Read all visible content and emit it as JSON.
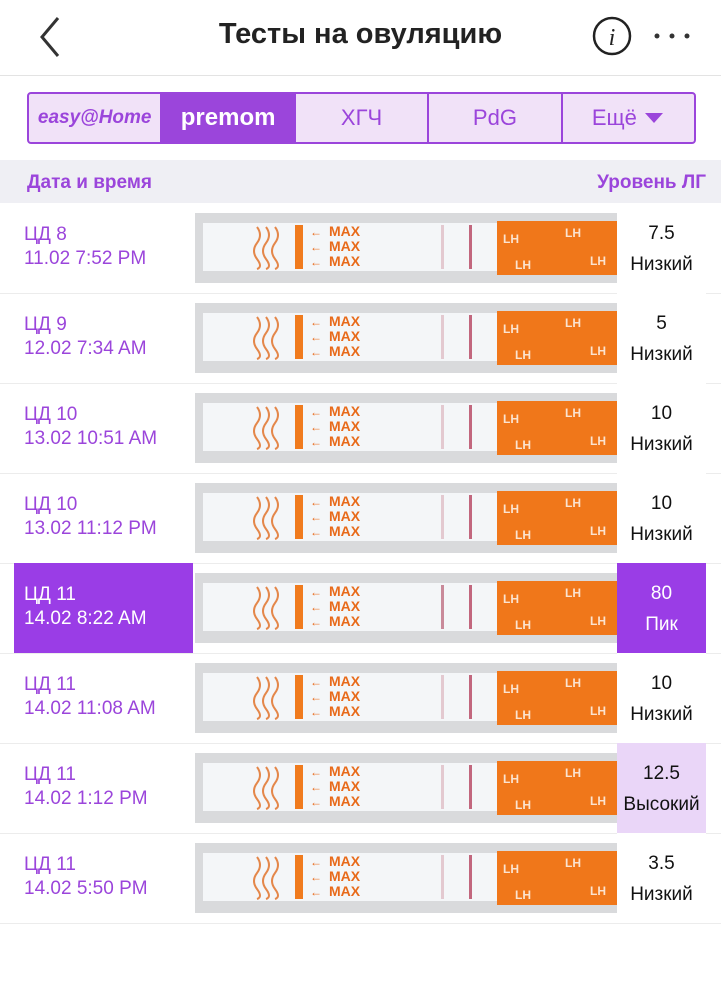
{
  "header": {
    "title": "Тесты на овуляцию",
    "info_icon": "i"
  },
  "tabs": [
    "easy@Home",
    "premom",
    "ХГЧ",
    "PdG",
    "Ещё"
  ],
  "columns": [
    "Дата и время",
    "Уровень ЛГ"
  ],
  "strip_labels": {
    "max": "MAX",
    "lh": "LH"
  },
  "rows": [
    {
      "cycle_day": "ЦД 8",
      "datetime": "11.02 7:52 PM",
      "lh_value": 7.5,
      "level": "Низкий",
      "selected": false,
      "value_bg": "#ffffff"
    },
    {
      "cycle_day": "ЦД 9",
      "datetime": "12.02 7:34 AM",
      "lh_value": 5,
      "level": "Низкий",
      "selected": false,
      "value_bg": "#ffffff"
    },
    {
      "cycle_day": "ЦД 10",
      "datetime": "13.02 10:51 AM",
      "lh_value": 10,
      "level": "Низкий",
      "selected": false,
      "value_bg": "#ffffff"
    },
    {
      "cycle_day": "ЦД 10",
      "datetime": "13.02 11:12 PM",
      "lh_value": 10,
      "level": "Низкий",
      "selected": false,
      "value_bg": "#ffffff"
    },
    {
      "cycle_day": "ЦД 11",
      "datetime": "14.02 8:22 AM",
      "lh_value": 80,
      "level": "Пик",
      "selected": true,
      "value_bg": "#9a3de6"
    },
    {
      "cycle_day": "ЦД 11",
      "datetime": "14.02 11:08 AM",
      "lh_value": 10,
      "level": "Низкий",
      "selected": false,
      "value_bg": "#ffffff"
    },
    {
      "cycle_day": "ЦД 11",
      "datetime": "14.02 1:12 PM",
      "lh_value": 12.5,
      "level": "Высокий",
      "selected": false,
      "value_bg": "#ead6f8"
    },
    {
      "cycle_day": "ЦД 11",
      "datetime": "14.02 5:50 PM",
      "lh_value": 3.5,
      "level": "Низкий",
      "selected": false,
      "value_bg": "#ffffff"
    }
  ]
}
